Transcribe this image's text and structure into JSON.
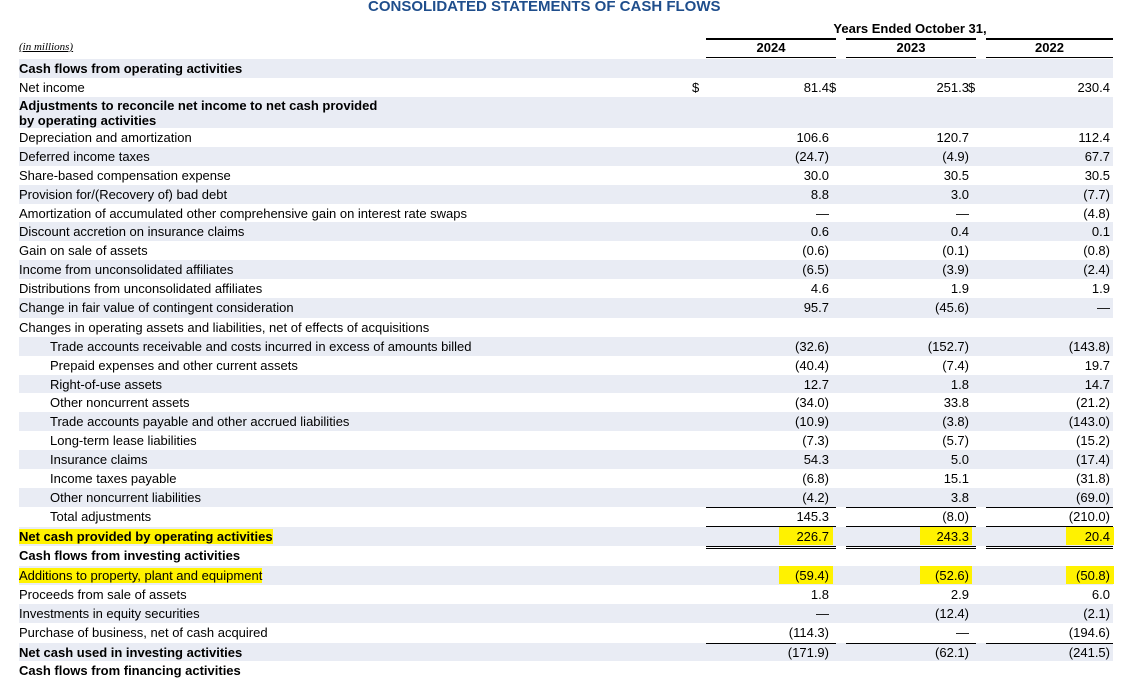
{
  "title": "CONSOLIDATED STATEMENTS OF CASH FLOWS",
  "years_header": "Years Ended October 31,",
  "years": [
    "2024",
    "2023",
    "2022"
  ],
  "units": "(in millions)",
  "colors": {
    "title": "#1f4e8c",
    "highlight": "#fff200",
    "shade": "#e9ecf4"
  },
  "rows": [
    {
      "label": "Cash flows from operating activities",
      "bold": true,
      "values": [
        "",
        "",
        ""
      ]
    },
    {
      "label": "Net income",
      "values": [
        "81.4",
        "251.3",
        "230.4"
      ],
      "dollar": "$"
    },
    {
      "label": "Adjustments to reconcile net income to net cash provided",
      "label2": "by operating activities",
      "bold": true,
      "values": [
        "",
        "",
        ""
      ]
    },
    {
      "label": "Depreciation and amortization",
      "values": [
        "106.6",
        "120.7",
        "112.4"
      ]
    },
    {
      "label": "Deferred income taxes",
      "values": [
        "(24.7)",
        "(4.9)",
        "67.7"
      ]
    },
    {
      "label": "Share-based compensation expense",
      "values": [
        "30.0",
        "30.5",
        "30.5"
      ]
    },
    {
      "label": "Provision for/(Recovery of) bad debt",
      "values": [
        "8.8",
        "3.0",
        "(7.7)"
      ]
    },
    {
      "label": "Amortization of accumulated other comprehensive gain on interest rate swaps",
      "values": [
        "—",
        "—",
        "(4.8)"
      ]
    },
    {
      "label": "Discount accretion on insurance claims",
      "values": [
        "0.6",
        "0.4",
        "0.1"
      ]
    },
    {
      "label": "Gain on sale of assets",
      "values": [
        "(0.6)",
        "(0.1)",
        "(0.8)"
      ]
    },
    {
      "label": "Income from unconsolidated affiliates",
      "values": [
        "(6.5)",
        "(3.9)",
        "(2.4)"
      ]
    },
    {
      "label": "Distributions from unconsolidated affiliates",
      "values": [
        "4.6",
        "1.9",
        "1.9"
      ]
    },
    {
      "label": "Change in fair value of contingent consideration",
      "values": [
        "95.7",
        "(45.6)",
        "—"
      ]
    },
    {
      "label": "Changes in operating assets and liabilities, net of effects of acquisitions",
      "values": [
        "",
        "",
        ""
      ]
    },
    {
      "label": "Trade accounts receivable and costs incurred in excess of amounts billed",
      "values": [
        "(32.6)",
        "(152.7)",
        "(143.8)"
      ]
    },
    {
      "label": "Prepaid expenses and other current assets",
      "values": [
        "(40.4)",
        "(7.4)",
        "19.7"
      ]
    },
    {
      "label": "Right-of-use assets",
      "values": [
        "12.7",
        "1.8",
        "14.7"
      ]
    },
    {
      "label": "Other noncurrent assets",
      "values": [
        "(34.0)",
        "33.8",
        "(21.2)"
      ]
    },
    {
      "label": "Trade accounts payable and other accrued liabilities",
      "values": [
        "(10.9)",
        "(3.8)",
        "(143.0)"
      ]
    },
    {
      "label": "Long-term lease liabilities",
      "values": [
        "(7.3)",
        "(5.7)",
        "(15.2)"
      ]
    },
    {
      "label": "Insurance claims",
      "values": [
        "54.3",
        "5.0",
        "(17.4)"
      ]
    },
    {
      "label": "Income taxes payable",
      "values": [
        "(6.8)",
        "15.1",
        "(31.8)"
      ]
    },
    {
      "label": "Other noncurrent liabilities",
      "values": [
        "(4.2)",
        "3.8",
        "(69.0)"
      ]
    },
    {
      "label": "Total adjustments",
      "values": [
        "145.3",
        "(8.0)",
        "(210.0)"
      ]
    },
    {
      "label": "Net cash provided by operating activities",
      "bold": true,
      "values": [
        "226.7",
        "243.3",
        "20.4"
      ]
    },
    {
      "label": "Cash flows from investing activities",
      "bold": true,
      "values": [
        "",
        "",
        ""
      ]
    },
    {
      "label": "Additions to property, plant and equipment",
      "values": [
        "(59.4)",
        "(52.6)",
        "(50.8)"
      ]
    },
    {
      "label": "Proceeds from sale of assets",
      "values": [
        "1.8",
        "2.9",
        "6.0"
      ]
    },
    {
      "label": "Investments in equity securities",
      "values": [
        "—",
        "(12.4)",
        "(2.1)"
      ]
    },
    {
      "label": "Purchase of business, net of cash acquired",
      "values": [
        "(114.3)",
        "—",
        "(194.6)"
      ]
    },
    {
      "label": "Net cash used in investing activities",
      "bold": true,
      "values": [
        "(171.9)",
        "(62.1)",
        "(241.5)"
      ]
    },
    {
      "label": "Cash flows from financing activities",
      "bold": true,
      "values": [
        "",
        "",
        ""
      ]
    }
  ]
}
